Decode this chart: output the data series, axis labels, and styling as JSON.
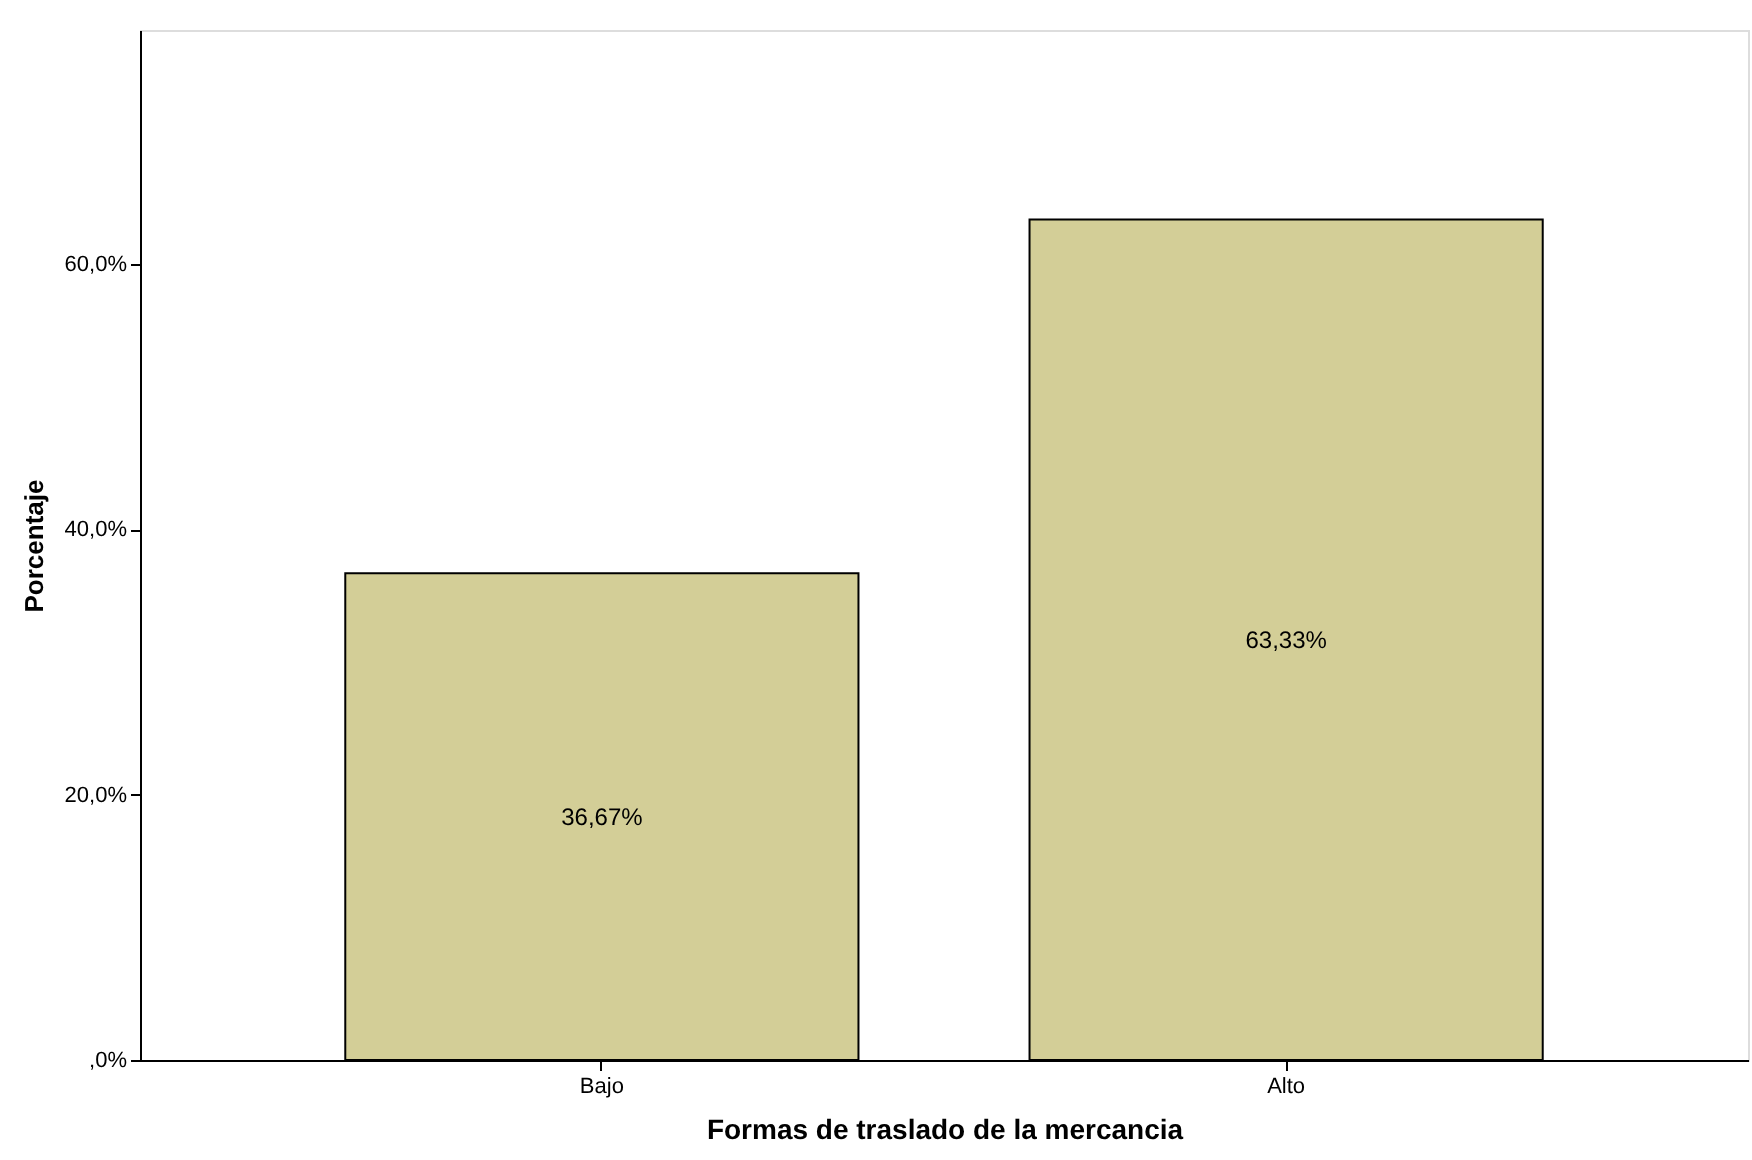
{
  "chart_data": {
    "type": "bar",
    "xlabel": "Formas de traslado de la mercancia",
    "ylabel": "Porcentaje",
    "categories": [
      "Bajo",
      "Alto"
    ],
    "values": [
      36.67,
      63.33
    ],
    "color": "#d3ce97",
    "value_labels": [
      "36,67%",
      "63,33%"
    ],
    "ylim": [
      0,
      77.6
    ],
    "yticks": [
      {
        "value": 0,
        "label": ",0%"
      },
      {
        "value": 20,
        "label": "20,0%"
      },
      {
        "value": 40,
        "label": "40,0%"
      },
      {
        "value": 60,
        "label": "60,0%"
      }
    ],
    "grid": false
  }
}
